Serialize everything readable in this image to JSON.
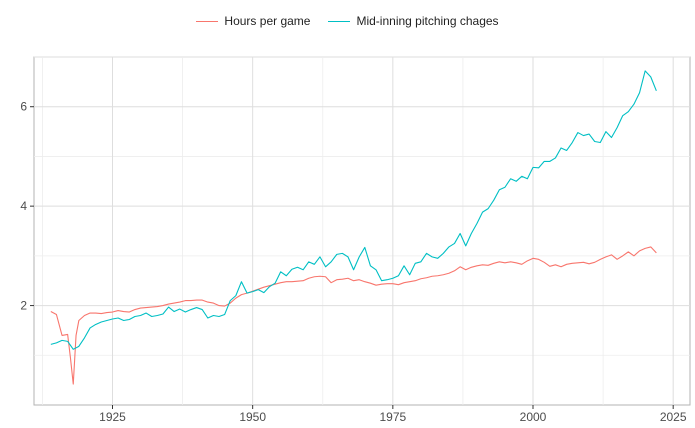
{
  "chart_data": {
    "type": "line",
    "legend_position": "top",
    "grid": true,
    "xlim": [
      1911,
      2028
    ],
    "ylim": [
      0.0,
      7.0
    ],
    "x_ticks": [
      1925,
      1950,
      1975,
      2000,
      2025
    ],
    "y_ticks": [
      2,
      4,
      6
    ],
    "series": [
      {
        "name": "Hours per game",
        "color": "#F8766D",
        "points": [
          [
            1914,
            1.88
          ],
          [
            1915,
            1.82
          ],
          [
            1916,
            1.4
          ],
          [
            1917,
            1.42
          ],
          [
            1917.5,
            0.95
          ],
          [
            1918,
            0.42
          ],
          [
            1918.5,
            1.4
          ],
          [
            1919,
            1.7
          ],
          [
            1920,
            1.8
          ],
          [
            1921,
            1.85
          ],
          [
            1922,
            1.85
          ],
          [
            1923,
            1.84
          ],
          [
            1924,
            1.86
          ],
          [
            1925,
            1.87
          ],
          [
            1926,
            1.9
          ],
          [
            1927,
            1.88
          ],
          [
            1928,
            1.87
          ],
          [
            1929,
            1.92
          ],
          [
            1930,
            1.95
          ],
          [
            1931,
            1.96
          ],
          [
            1932,
            1.97
          ],
          [
            1933,
            1.98
          ],
          [
            1934,
            2.0
          ],
          [
            1935,
            2.03
          ],
          [
            1936,
            2.05
          ],
          [
            1937,
            2.07
          ],
          [
            1938,
            2.1
          ],
          [
            1939,
            2.1
          ],
          [
            1940,
            2.11
          ],
          [
            1941,
            2.11
          ],
          [
            1942,
            2.07
          ],
          [
            1943,
            2.05
          ],
          [
            1944,
            2.0
          ],
          [
            1945,
            1.99
          ],
          [
            1946,
            2.05
          ],
          [
            1947,
            2.15
          ],
          [
            1948,
            2.22
          ],
          [
            1949,
            2.25
          ],
          [
            1950,
            2.29
          ],
          [
            1951,
            2.33
          ],
          [
            1952,
            2.37
          ],
          [
            1953,
            2.4
          ],
          [
            1954,
            2.43
          ],
          [
            1955,
            2.46
          ],
          [
            1956,
            2.48
          ],
          [
            1957,
            2.48
          ],
          [
            1958,
            2.49
          ],
          [
            1959,
            2.5
          ],
          [
            1960,
            2.55
          ],
          [
            1961,
            2.58
          ],
          [
            1962,
            2.59
          ],
          [
            1963,
            2.58
          ],
          [
            1964,
            2.46
          ],
          [
            1965,
            2.52
          ],
          [
            1966,
            2.53
          ],
          [
            1967,
            2.55
          ],
          [
            1968,
            2.5
          ],
          [
            1969,
            2.52
          ],
          [
            1970,
            2.48
          ],
          [
            1971,
            2.45
          ],
          [
            1972,
            2.41
          ],
          [
            1973,
            2.43
          ],
          [
            1974,
            2.44
          ],
          [
            1975,
            2.44
          ],
          [
            1976,
            2.42
          ],
          [
            1977,
            2.46
          ],
          [
            1978,
            2.48
          ],
          [
            1979,
            2.5
          ],
          [
            1980,
            2.54
          ],
          [
            1981,
            2.56
          ],
          [
            1982,
            2.59
          ],
          [
            1983,
            2.6
          ],
          [
            1984,
            2.62
          ],
          [
            1985,
            2.65
          ],
          [
            1986,
            2.7
          ],
          [
            1987,
            2.78
          ],
          [
            1988,
            2.72
          ],
          [
            1989,
            2.77
          ],
          [
            1990,
            2.8
          ],
          [
            1991,
            2.82
          ],
          [
            1992,
            2.81
          ],
          [
            1993,
            2.85
          ],
          [
            1994,
            2.88
          ],
          [
            1995,
            2.86
          ],
          [
            1996,
            2.88
          ],
          [
            1997,
            2.86
          ],
          [
            1998,
            2.83
          ],
          [
            1999,
            2.9
          ],
          [
            2000,
            2.95
          ],
          [
            2001,
            2.93
          ],
          [
            2002,
            2.87
          ],
          [
            2003,
            2.79
          ],
          [
            2004,
            2.82
          ],
          [
            2005,
            2.78
          ],
          [
            2006,
            2.83
          ],
          [
            2007,
            2.85
          ],
          [
            2008,
            2.86
          ],
          [
            2009,
            2.87
          ],
          [
            2010,
            2.84
          ],
          [
            2011,
            2.87
          ],
          [
            2012,
            2.93
          ],
          [
            2013,
            2.98
          ],
          [
            2014,
            3.02
          ],
          [
            2015,
            2.93
          ],
          [
            2016,
            3.0
          ],
          [
            2017,
            3.08
          ],
          [
            2018,
            3.0
          ],
          [
            2019,
            3.1
          ],
          [
            2020,
            3.15
          ],
          [
            2021,
            3.18
          ],
          [
            2022,
            3.06
          ]
        ]
      },
      {
        "name": "Mid-inning pitching chages",
        "color": "#00BFC4",
        "points": [
          [
            1914,
            1.22
          ],
          [
            1915,
            1.25
          ],
          [
            1916,
            1.3
          ],
          [
            1917,
            1.28
          ],
          [
            1918,
            1.12
          ],
          [
            1919,
            1.18
          ],
          [
            1920,
            1.35
          ],
          [
            1921,
            1.55
          ],
          [
            1922,
            1.62
          ],
          [
            1923,
            1.67
          ],
          [
            1924,
            1.7
          ],
          [
            1925,
            1.73
          ],
          [
            1926,
            1.75
          ],
          [
            1927,
            1.7
          ],
          [
            1928,
            1.72
          ],
          [
            1929,
            1.78
          ],
          [
            1930,
            1.8
          ],
          [
            1931,
            1.85
          ],
          [
            1932,
            1.78
          ],
          [
            1933,
            1.8
          ],
          [
            1934,
            1.83
          ],
          [
            1935,
            1.97
          ],
          [
            1936,
            1.88
          ],
          [
            1937,
            1.93
          ],
          [
            1938,
            1.87
          ],
          [
            1939,
            1.92
          ],
          [
            1940,
            1.96
          ],
          [
            1941,
            1.92
          ],
          [
            1942,
            1.75
          ],
          [
            1943,
            1.8
          ],
          [
            1944,
            1.78
          ],
          [
            1945,
            1.82
          ],
          [
            1946,
            2.1
          ],
          [
            1947,
            2.2
          ],
          [
            1948,
            2.48
          ],
          [
            1949,
            2.25
          ],
          [
            1950,
            2.28
          ],
          [
            1951,
            2.32
          ],
          [
            1952,
            2.26
          ],
          [
            1953,
            2.38
          ],
          [
            1954,
            2.45
          ],
          [
            1955,
            2.68
          ],
          [
            1956,
            2.6
          ],
          [
            1957,
            2.73
          ],
          [
            1958,
            2.77
          ],
          [
            1959,
            2.72
          ],
          [
            1960,
            2.88
          ],
          [
            1961,
            2.83
          ],
          [
            1962,
            2.98
          ],
          [
            1963,
            2.78
          ],
          [
            1964,
            2.88
          ],
          [
            1965,
            3.03
          ],
          [
            1966,
            3.05
          ],
          [
            1967,
            2.98
          ],
          [
            1968,
            2.72
          ],
          [
            1969,
            2.98
          ],
          [
            1970,
            3.17
          ],
          [
            1971,
            2.8
          ],
          [
            1972,
            2.72
          ],
          [
            1973,
            2.5
          ],
          [
            1974,
            2.52
          ],
          [
            1975,
            2.55
          ],
          [
            1976,
            2.6
          ],
          [
            1977,
            2.8
          ],
          [
            1978,
            2.62
          ],
          [
            1979,
            2.85
          ],
          [
            1980,
            2.88
          ],
          [
            1981,
            3.05
          ],
          [
            1982,
            2.98
          ],
          [
            1983,
            2.95
          ],
          [
            1984,
            3.05
          ],
          [
            1985,
            3.18
          ],
          [
            1986,
            3.25
          ],
          [
            1987,
            3.45
          ],
          [
            1988,
            3.2
          ],
          [
            1989,
            3.45
          ],
          [
            1990,
            3.65
          ],
          [
            1991,
            3.88
          ],
          [
            1992,
            3.95
          ],
          [
            1993,
            4.12
          ],
          [
            1994,
            4.33
          ],
          [
            1995,
            4.38
          ],
          [
            1996,
            4.55
          ],
          [
            1997,
            4.5
          ],
          [
            1998,
            4.6
          ],
          [
            1999,
            4.55
          ],
          [
            2000,
            4.78
          ],
          [
            2001,
            4.77
          ],
          [
            2002,
            4.9
          ],
          [
            2003,
            4.9
          ],
          [
            2004,
            4.97
          ],
          [
            2005,
            5.17
          ],
          [
            2006,
            5.12
          ],
          [
            2007,
            5.28
          ],
          [
            2008,
            5.48
          ],
          [
            2009,
            5.42
          ],
          [
            2010,
            5.45
          ],
          [
            2011,
            5.3
          ],
          [
            2012,
            5.28
          ],
          [
            2013,
            5.5
          ],
          [
            2014,
            5.38
          ],
          [
            2015,
            5.58
          ],
          [
            2016,
            5.82
          ],
          [
            2017,
            5.9
          ],
          [
            2018,
            6.05
          ],
          [
            2019,
            6.28
          ],
          [
            2020,
            6.72
          ],
          [
            2021,
            6.6
          ],
          [
            2022,
            6.32
          ]
        ]
      }
    ]
  }
}
